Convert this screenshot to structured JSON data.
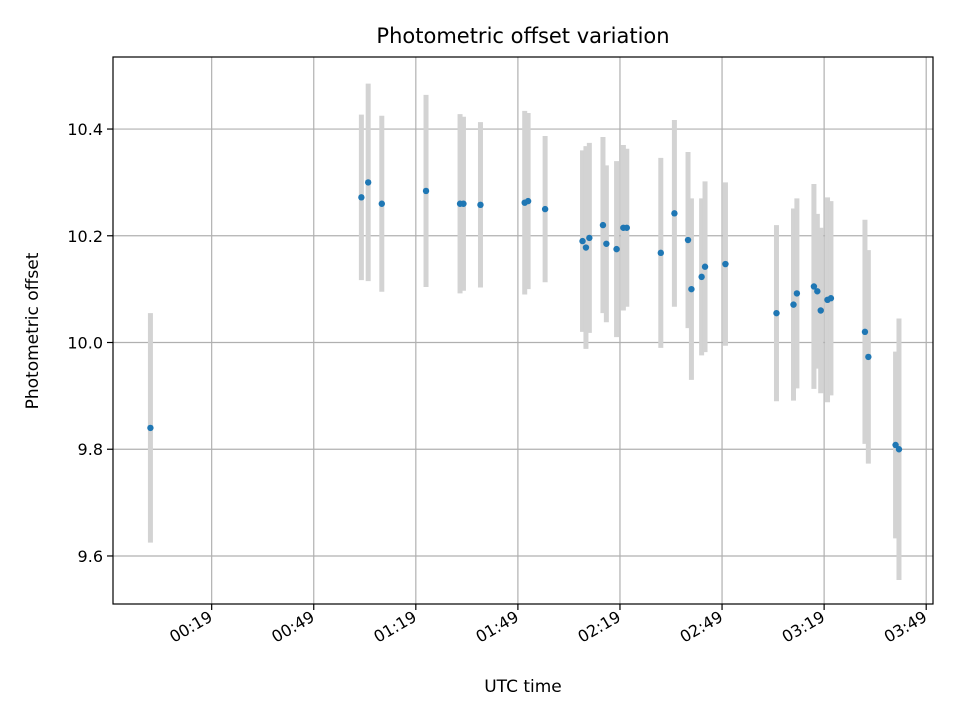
{
  "chart_data": {
    "type": "scatter",
    "title": "Photometric offset variation",
    "xlabel": "UTC time",
    "ylabel": "Photometric offset",
    "xlim": [
      "23:50",
      "03:51"
    ],
    "ylim": [
      9.51,
      10.535
    ],
    "grid": true,
    "x_ticks": [
      "00:19",
      "00:49",
      "01:19",
      "01:49",
      "02:19",
      "02:49",
      "03:19",
      "03:49"
    ],
    "y_ticks": [
      "9.6",
      "9.8",
      "10.0",
      "10.2",
      "10.4"
    ],
    "colors": {
      "marker": "#1f77b4",
      "errorbar": "#d3d3d3",
      "grid": "#b0b0b0"
    },
    "points": [
      {
        "x": "00:01",
        "y": 9.84,
        "err": 0.215
      },
      {
        "x": "01:03",
        "y": 10.272,
        "err": 0.155
      },
      {
        "x": "01:05",
        "y": 10.3,
        "err": 0.185
      },
      {
        "x": "01:09",
        "y": 10.26,
        "err": 0.165
      },
      {
        "x": "01:22",
        "y": 10.284,
        "err": 0.18
      },
      {
        "x": "01:32",
        "y": 10.26,
        "err": 0.168
      },
      {
        "x": "01:33",
        "y": 10.26,
        "err": 0.163
      },
      {
        "x": "01:38",
        "y": 10.258,
        "err": 0.155
      },
      {
        "x": "01:51",
        "y": 10.262,
        "err": 0.172
      },
      {
        "x": "01:52",
        "y": 10.265,
        "err": 0.165
      },
      {
        "x": "01:57",
        "y": 10.25,
        "err": 0.137
      },
      {
        "x": "02:08",
        "y": 10.19,
        "err": 0.17
      },
      {
        "x": "02:09",
        "y": 10.178,
        "err": 0.19
      },
      {
        "x": "02:10",
        "y": 10.196,
        "err": 0.178
      },
      {
        "x": "02:14",
        "y": 10.22,
        "err": 0.165
      },
      {
        "x": "02:15",
        "y": 10.185,
        "err": 0.147
      },
      {
        "x": "02:18",
        "y": 10.175,
        "err": 0.165
      },
      {
        "x": "02:20",
        "y": 10.215,
        "err": 0.155
      },
      {
        "x": "02:21",
        "y": 10.215,
        "err": 0.148
      },
      {
        "x": "02:31",
        "y": 10.168,
        "err": 0.178
      },
      {
        "x": "02:35",
        "y": 10.242,
        "err": 0.175
      },
      {
        "x": "02:39",
        "y": 10.192,
        "err": 0.165
      },
      {
        "x": "02:40",
        "y": 10.1,
        "err": 0.17
      },
      {
        "x": "02:43",
        "y": 10.123,
        "err": 0.147
      },
      {
        "x": "02:44",
        "y": 10.142,
        "err": 0.16
      },
      {
        "x": "02:50",
        "y": 10.147,
        "err": 0.153
      },
      {
        "x": "03:05",
        "y": 10.055,
        "err": 0.165
      },
      {
        "x": "03:10",
        "y": 10.071,
        "err": 0.18
      },
      {
        "x": "03:11",
        "y": 10.092,
        "err": 0.178
      },
      {
        "x": "03:16",
        "y": 10.105,
        "err": 0.192
      },
      {
        "x": "03:17",
        "y": 10.096,
        "err": 0.145
      },
      {
        "x": "03:18",
        "y": 10.06,
        "err": 0.155
      },
      {
        "x": "03:20",
        "y": 10.08,
        "err": 0.192
      },
      {
        "x": "03:21",
        "y": 10.083,
        "err": 0.182
      },
      {
        "x": "03:31",
        "y": 10.02,
        "err": 0.21
      },
      {
        "x": "03:32",
        "y": 9.973,
        "err": 0.2
      },
      {
        "x": "03:40",
        "y": 9.808,
        "err": 0.175
      },
      {
        "x": "03:41",
        "y": 9.8,
        "err": 0.245
      }
    ]
  }
}
